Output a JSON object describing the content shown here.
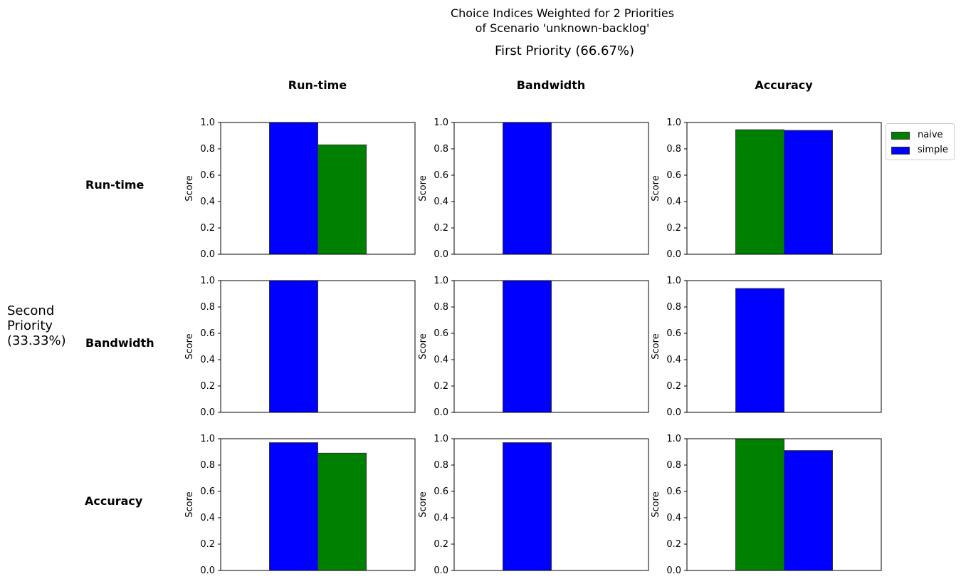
{
  "title_line1": "Choice Indices Weighted for 2 Priorities",
  "title_line2": "of Scenario 'unknown-backlog'",
  "col_group_label": "First Priority (66.67%)",
  "row_group_label": "Second Priority (33.33%)",
  "col_labels": [
    "Run-time",
    "Bandwidth",
    "Accuracy"
  ],
  "row_labels": [
    "Run-time",
    "Bandwidth",
    "Accuracy"
  ],
  "legend": [
    {
      "name": "naive",
      "color": "#008000"
    },
    {
      "name": "simple",
      "color": "#0000ff"
    }
  ],
  "colors": {
    "naive": "#008000",
    "simple": "#0000ff",
    "edge": "#333333"
  },
  "chart_data": {
    "type": "bar",
    "layout": "3x3 grid of small-multiple bar charts",
    "ylabel": "Score",
    "ylim": [
      0,
      1.0
    ],
    "yticks": [
      "0.0",
      "0.2",
      "0.4",
      "0.6",
      "0.8",
      "1.0"
    ],
    "grid": false,
    "legend_placement": "outside right of top-right panel",
    "panels": [
      {
        "row": "Run-time",
        "col": "Run-time",
        "bars": [
          {
            "series": "simple",
            "value": 1.0
          },
          {
            "series": "naive",
            "value": 0.83
          }
        ]
      },
      {
        "row": "Run-time",
        "col": "Bandwidth",
        "bars": [
          {
            "series": "simple",
            "value": 1.0
          },
          {
            "series": "naive",
            "value": 0.0
          }
        ]
      },
      {
        "row": "Run-time",
        "col": "Accuracy",
        "bars": [
          {
            "series": "naive",
            "value": 0.945
          },
          {
            "series": "simple",
            "value": 0.94
          }
        ]
      },
      {
        "row": "Bandwidth",
        "col": "Run-time",
        "bars": [
          {
            "series": "simple",
            "value": 1.0
          },
          {
            "series": "naive",
            "value": 0.0
          }
        ]
      },
      {
        "row": "Bandwidth",
        "col": "Bandwidth",
        "bars": [
          {
            "series": "simple",
            "value": 1.0
          },
          {
            "series": "naive",
            "value": 0.0
          }
        ]
      },
      {
        "row": "Bandwidth",
        "col": "Accuracy",
        "bars": [
          {
            "series": "simple",
            "value": 0.94
          },
          {
            "series": "naive",
            "value": 0.0
          }
        ]
      },
      {
        "row": "Accuracy",
        "col": "Run-time",
        "bars": [
          {
            "series": "simple",
            "value": 0.97
          },
          {
            "series": "naive",
            "value": 0.89
          }
        ]
      },
      {
        "row": "Accuracy",
        "col": "Bandwidth",
        "bars": [
          {
            "series": "simple",
            "value": 0.97
          },
          {
            "series": "naive",
            "value": 0.0
          }
        ]
      },
      {
        "row": "Accuracy",
        "col": "Accuracy",
        "bars": [
          {
            "series": "naive",
            "value": 1.0
          },
          {
            "series": "simple",
            "value": 0.91
          }
        ]
      }
    ]
  }
}
